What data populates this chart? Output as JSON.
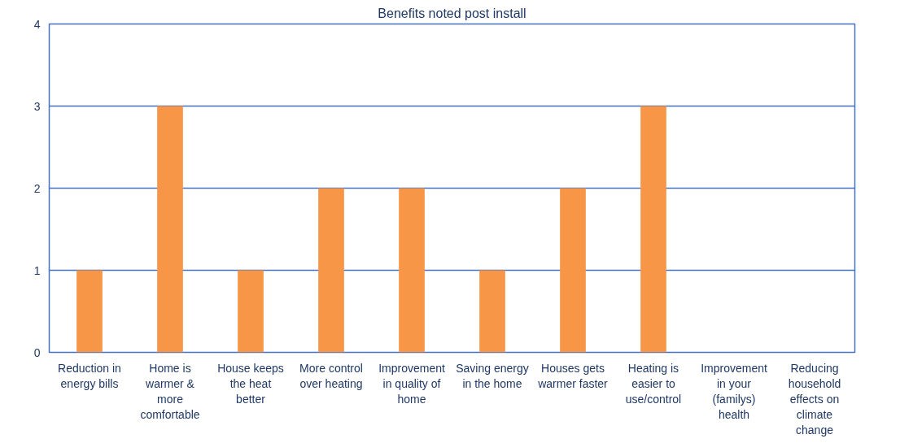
{
  "chart_data": {
    "type": "bar",
    "title": "Benefits noted post install",
    "categories": [
      "Reduction in\nenergy bills",
      "Home is\nwarmer &\nmore\ncomfortable",
      "House keeps\nthe heat\nbetter",
      "More control\nover heating",
      "Improvement\nin quality of\nhome",
      "Saving energy\nin the home",
      "Houses gets\nwarmer faster",
      "Heating is\neasier to\nuse/control",
      "Improvement\nin your\n(familys)\nhealth",
      "Reducing\nhousehold\neffects on\nclimate\nchange"
    ],
    "values": [
      1,
      3,
      1,
      2,
      2,
      1,
      2,
      3,
      0,
      0
    ],
    "color": "#f79646",
    "ylim": [
      0,
      4
    ],
    "yticks": [
      0,
      1,
      2,
      3,
      4
    ],
    "grid": "y"
  }
}
